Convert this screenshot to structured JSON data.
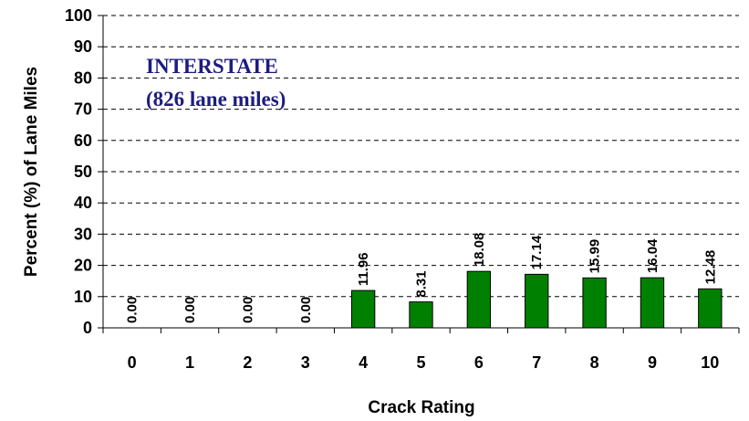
{
  "chart_data": {
    "type": "bar",
    "x_label": "Crack Rating",
    "y_label": "Percent (%) of Lane Miles",
    "annotations": [
      "INTERSTATE",
      "(826 lane miles)"
    ],
    "categories": [
      "0",
      "1",
      "2",
      "3",
      "4",
      "5",
      "6",
      "7",
      "8",
      "9",
      "10"
    ],
    "values": [
      0,
      0,
      0,
      0,
      11.96,
      8.31,
      18.08,
      17.14,
      15.99,
      16.04,
      12.48
    ],
    "value_labels": [
      "0.00",
      "0.00",
      "0.00",
      "0.00",
      "11.96",
      "8.31",
      "18.08",
      "17.14",
      "15.99",
      "16.04",
      "12.48"
    ],
    "color": "#008000",
    "ylim": [
      0,
      100
    ],
    "yticks": [
      0,
      10,
      20,
      30,
      40,
      50,
      60,
      70,
      80,
      90,
      100
    ],
    "grid": true
  }
}
